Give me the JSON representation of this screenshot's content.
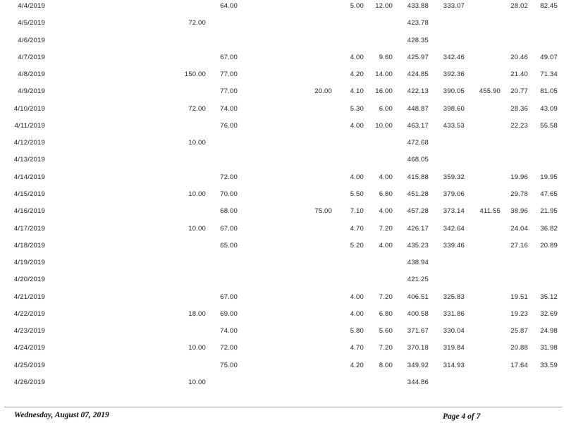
{
  "document": {
    "kind": "scanned report page",
    "footer": {
      "date": "Wednesday, August 07, 2019",
      "page_label": "Page 4 of 7"
    }
  },
  "table": {
    "rows": [
      [
        "4/4/2019",
        "",
        "64.00",
        "",
        "5.00",
        "12.00",
        "433.88",
        "333.07",
        "",
        "28.02",
        "82.45"
      ],
      [
        "4/5/2019",
        "72.00",
        "",
        "",
        "",
        "",
        "423.78",
        "",
        "",
        "",
        ""
      ],
      [
        "4/6/2019",
        "",
        "",
        "",
        "",
        "",
        "428.35",
        "",
        "",
        "",
        ""
      ],
      [
        "4/7/2019",
        "",
        "67.00",
        "",
        "4.00",
        "9.60",
        "425.97",
        "342.46",
        "",
        "20.46",
        "49.07"
      ],
      [
        "4/8/2019",
        "150.00",
        "77.00",
        "",
        "4.20",
        "14.00",
        "424.85",
        "392.36",
        "",
        "21.40",
        "71.34"
      ],
      [
        "4/9/2019",
        "",
        "77.00",
        "20.00",
        "4.10",
        "16.00",
        "422.13",
        "390.05",
        "455.90",
        "20.77",
        "81.05"
      ],
      [
        "4/10/2019",
        "72.00",
        "74.00",
        "",
        "5.30",
        "6.00",
        "448.87",
        "398.60",
        "",
        "28.36",
        "43.09"
      ],
      [
        "4/11/2019",
        "",
        "76.00",
        "",
        "4.00",
        "10.00",
        "463.17",
        "433.53",
        "",
        "22.23",
        "55.58"
      ],
      [
        "4/12/2019",
        "10.00",
        "",
        "",
        "",
        "",
        "472.68",
        "",
        "",
        "",
        ""
      ],
      [
        "4/13/2019",
        "",
        "",
        "",
        "",
        "",
        "468.05",
        "",
        "",
        "",
        ""
      ],
      [
        "4/14/2019",
        "",
        "72.00",
        "",
        "4.00",
        "4.00",
        "415.88",
        "359.32",
        "",
        "19.96",
        "19.95"
      ],
      [
        "4/15/2019",
        "10.00",
        "70.00",
        "",
        "5.50",
        "6.80",
        "451.28",
        "379.06",
        "",
        "29.78",
        "47.65"
      ],
      [
        "4/16/2019",
        "",
        "68.00",
        "75.00",
        "7.10",
        "4.00",
        "457.28",
        "373.14",
        "411.55",
        "38.96",
        "21.95"
      ],
      [
        "4/17/2019",
        "10.00",
        "67.00",
        "",
        "4.70",
        "7.20",
        "426.17",
        "342.64",
        "",
        "24.04",
        "36.82"
      ],
      [
        "4/18/2019",
        "",
        "65.00",
        "",
        "5.20",
        "4.00",
        "435.23",
        "339.46",
        "",
        "27.16",
        "20.89"
      ],
      [
        "4/19/2019",
        "",
        "",
        "",
        "",
        "",
        "438.94",
        "",
        "",
        "",
        ""
      ],
      [
        "4/20/2019",
        "",
        "",
        "",
        "",
        "",
        "421.25",
        "",
        "",
        "",
        ""
      ],
      [
        "4/21/2019",
        "",
        "67.00",
        "",
        "4.00",
        "7.20",
        "406.51",
        "325.83",
        "",
        "19.51",
        "35.12"
      ],
      [
        "4/22/2019",
        "18.00",
        "69.00",
        "",
        "4.00",
        "6.80",
        "400.58",
        "331.86",
        "",
        "19.23",
        "32.69"
      ],
      [
        "4/23/2019",
        "",
        "74.00",
        "",
        "5.80",
        "5.60",
        "371.67",
        "330.04",
        "",
        "25.87",
        "24.98"
      ],
      [
        "4/24/2019",
        "10.00",
        "72.00",
        "",
        "4.70",
        "7.20",
        "370.18",
        "319.84",
        "",
        "20.88",
        "31.98"
      ],
      [
        "4/25/2019",
        "",
        "75.00",
        "",
        "4.20",
        "8.00",
        "349.92",
        "314.93",
        "",
        "17.64",
        "33.59"
      ],
      [
        "4/26/2019",
        "10.00",
        "",
        "",
        "",
        "",
        "344.86",
        "",
        "",
        "",
        ""
      ]
    ]
  }
}
